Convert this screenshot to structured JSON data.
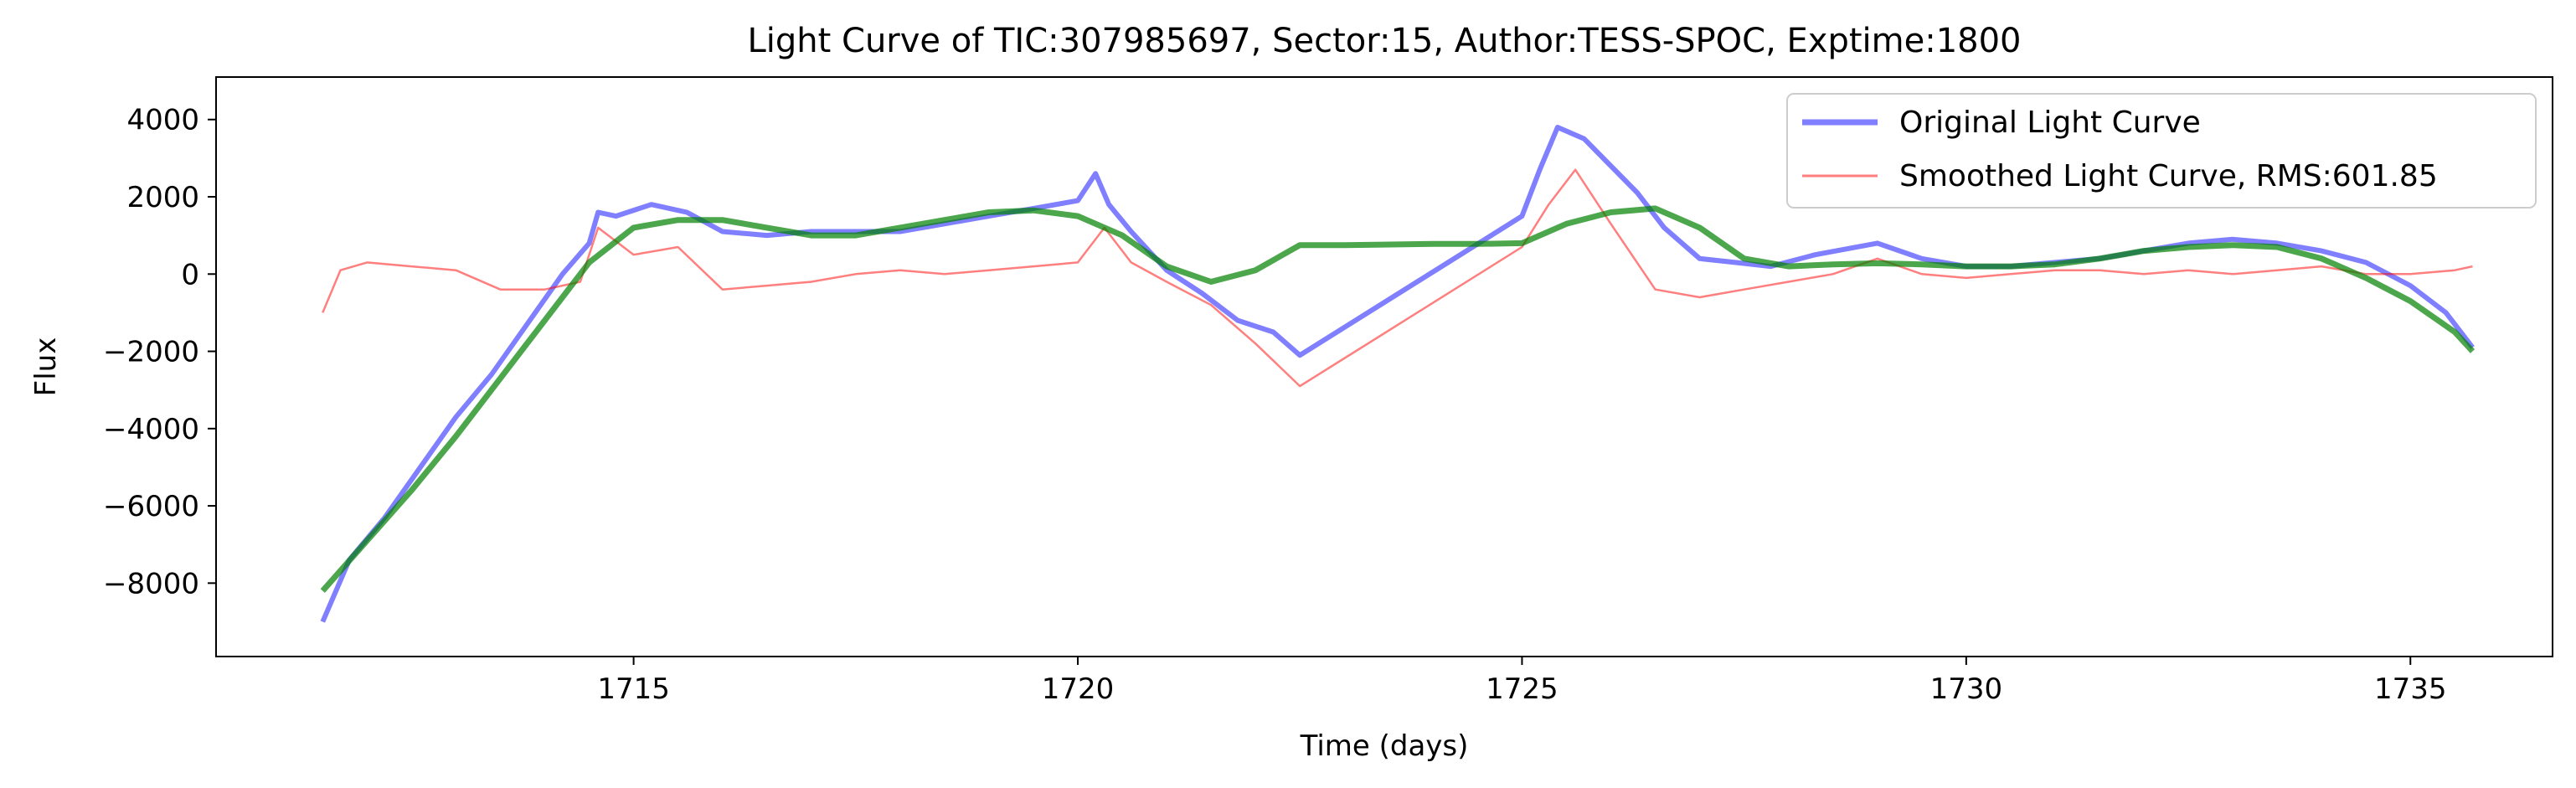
{
  "chart_data": {
    "type": "line",
    "title": "Light Curve of TIC:307985697, Sector:15, Author:TESS-SPOC, Exptime:1800",
    "xlabel": "Time (days)",
    "ylabel": "Flux",
    "xlim": [
      1710.3,
      1736.6
    ],
    "ylim": [
      -9900,
      5100
    ],
    "xticks": [
      1715,
      1720,
      1725,
      1730,
      1735
    ],
    "xtick_labels": [
      "1715",
      "1720",
      "1725",
      "1730",
      "1735"
    ],
    "yticks": [
      -8000,
      -6000,
      -4000,
      -2000,
      0,
      2000,
      4000
    ],
    "ytick_labels": [
      "−8000",
      "−6000",
      "−4000",
      "−2000",
      "0",
      "2000",
      "4000"
    ],
    "grid": false,
    "legend_position": "top-right",
    "series": [
      {
        "name": "Original Light Curve",
        "color": "#0000ff",
        "x": [
          1711.5,
          1711.8,
          1712.2,
          1712.6,
          1713.0,
          1713.4,
          1713.8,
          1714.2,
          1714.5,
          1714.6,
          1714.8,
          1715.2,
          1715.6,
          1716.0,
          1716.5,
          1717.0,
          1717.5,
          1718.0,
          1718.5,
          1719.0,
          1719.5,
          1720.0,
          1720.2,
          1720.35,
          1720.6,
          1721.0,
          1721.4,
          1721.8,
          1722.2,
          1722.5,
          1725.0,
          1725.2,
          1725.4,
          1725.7,
          1726.0,
          1726.3,
          1726.6,
          1727.0,
          1727.4,
          1727.8,
          1728.3,
          1729.0,
          1729.5,
          1730.0,
          1730.5,
          1731.0,
          1731.5,
          1732.0,
          1732.5,
          1733.0,
          1733.5,
          1734.0,
          1734.5,
          1735.0,
          1735.4,
          1735.7
        ],
        "y": [
          -9000,
          -7400,
          -6300,
          -5000,
          -3700,
          -2600,
          -1300,
          0,
          800,
          1600,
          1500,
          1800,
          1600,
          1100,
          1000,
          1100,
          1100,
          1100,
          1300,
          1500,
          1700,
          1900,
          2600,
          1800,
          1100,
          100,
          -500,
          -1200,
          -1500,
          -2100,
          1500,
          2700,
          3800,
          3500,
          2800,
          2100,
          1200,
          400,
          300,
          200,
          500,
          800,
          400,
          200,
          200,
          300,
          400,
          600,
          800,
          900,
          800,
          600,
          300,
          -300,
          -1000,
          -1900
        ]
      },
      {
        "name": "Smoothed Light Curve, RMS:601.85",
        "color": "#ff0000",
        "x": [
          1711.5,
          1711.7,
          1712.0,
          1712.5,
          1713.0,
          1713.5,
          1714.0,
          1714.4,
          1714.6,
          1715.0,
          1715.5,
          1716.0,
          1716.5,
          1717.0,
          1717.5,
          1718.0,
          1718.5,
          1719.0,
          1719.5,
          1720.0,
          1720.3,
          1720.6,
          1721.0,
          1721.5,
          1722.0,
          1722.5,
          1725.0,
          1725.3,
          1725.6,
          1726.0,
          1726.5,
          1727.0,
          1727.5,
          1728.0,
          1728.5,
          1729.0,
          1729.5,
          1730.0,
          1730.5,
          1731.0,
          1731.5,
          1732.0,
          1732.5,
          1733.0,
          1733.5,
          1734.0,
          1734.5,
          1735.0,
          1735.5,
          1735.7
        ],
        "y": [
          -1000,
          100,
          300,
          200,
          100,
          -400,
          -400,
          -200,
          1200,
          500,
          700,
          -400,
          -300,
          -200,
          0,
          100,
          0,
          100,
          200,
          300,
          1200,
          300,
          -200,
          -800,
          -1800,
          -2900,
          700,
          1800,
          2700,
          1300,
          -400,
          -600,
          -400,
          -200,
          0,
          400,
          0,
          -100,
          0,
          100,
          100,
          0,
          100,
          0,
          100,
          200,
          0,
          0,
          100,
          200
        ]
      },
      {
        "name": "",
        "color": "#008000",
        "x": [
          1711.5,
          1712.0,
          1712.5,
          1713.0,
          1713.5,
          1714.0,
          1714.5,
          1715.0,
          1715.5,
          1716.0,
          1716.5,
          1717.0,
          1717.5,
          1718.0,
          1718.5,
          1719.0,
          1719.5,
          1720.0,
          1720.5,
          1721.0,
          1721.5,
          1722.0,
          1722.5,
          1723.0,
          1724.0,
          1724.5,
          1725.0,
          1725.5,
          1726.0,
          1726.5,
          1727.0,
          1727.5,
          1728.0,
          1728.5,
          1729.0,
          1729.5,
          1730.0,
          1730.5,
          1731.0,
          1731.5,
          1732.0,
          1732.5,
          1733.0,
          1733.5,
          1734.0,
          1734.5,
          1735.0,
          1735.5,
          1735.7
        ],
        "y": [
          -8200,
          -6900,
          -5600,
          -4200,
          -2700,
          -1200,
          300,
          1200,
          1400,
          1400,
          1200,
          1000,
          1000,
          1200,
          1400,
          1600,
          1650,
          1500,
          1000,
          200,
          -200,
          100,
          750,
          750,
          780,
          780,
          800,
          1300,
          1600,
          1700,
          1200,
          400,
          200,
          250,
          280,
          250,
          200,
          200,
          250,
          400,
          600,
          700,
          750,
          700,
          400,
          -100,
          -700,
          -1500,
          -2000
        ]
      }
    ]
  }
}
